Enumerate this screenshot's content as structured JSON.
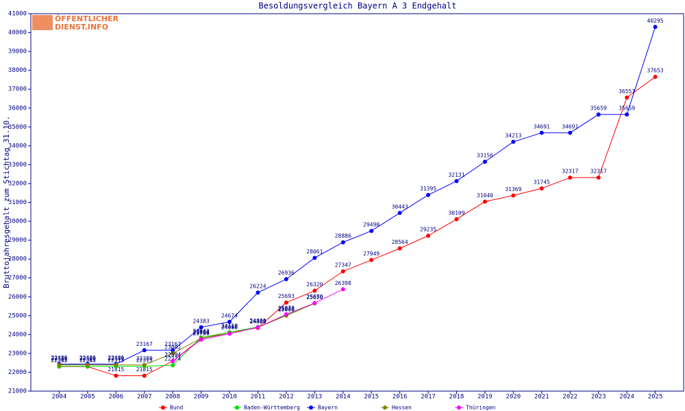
{
  "chart_data": {
    "type": "line",
    "title": "Besoldungsvergleich Bayern A 3 Endgehalt",
    "y_label": "Bruttojahresgehalt zum Stichtag 31.10.",
    "watermark": [
      "ÖFFENTLICHER",
      "DIENST.INFO"
    ],
    "categories": [
      "2004",
      "2005",
      "2006",
      "2007",
      "2008",
      "2009",
      "2010",
      "2011",
      "2012",
      "2013",
      "2014",
      "2015",
      "2016",
      "2017",
      "2018",
      "2019",
      "2020",
      "2021",
      "2022",
      "2023",
      "2024",
      "2025"
    ],
    "ylim": [
      21000,
      41000
    ],
    "yticks": [
      21000,
      22000,
      23000,
      24000,
      25000,
      26000,
      27000,
      28000,
      29000,
      30000,
      31000,
      32000,
      33000,
      34000,
      35000,
      36000,
      37000,
      38000,
      39000,
      40000,
      41000
    ],
    "series": [
      {
        "name": "Bund",
        "color": "#ff0000",
        "values": [
          22302,
          22302,
          21815,
          21815,
          22594,
          23784,
          24119,
          24350,
          25693,
          26320,
          27347,
          27949,
          28564,
          29235,
          30109,
          31040,
          31369,
          31745,
          32317,
          32317,
          36557,
          37653
        ]
      },
      {
        "name": "Baden-Württemberg",
        "color": "#00dd00",
        "values": [
          22315,
          22315,
          22315,
          22315,
          22374,
          23842,
          24118,
          24401,
          25030,
          25670,
          null,
          null,
          null,
          null,
          null,
          null,
          null,
          null,
          null,
          null,
          null,
          null
        ]
      },
      {
        "name": "Bayern",
        "color": "#0000ff",
        "values": [
          22436,
          22436,
          22436,
          23167,
          23167,
          24383,
          24674,
          26224,
          26936,
          28061,
          28886,
          29490,
          30443,
          31395,
          32131,
          33156,
          34213,
          34691,
          34691,
          35659,
          35659,
          40295
        ]
      },
      {
        "name": "Hessen",
        "color": "#808000",
        "values": [
          22389,
          22389,
          22389,
          22389,
          23002,
          23800,
          24050,
          24380,
          25000,
          25650,
          null,
          null,
          null,
          null,
          null,
          null,
          null,
          null,
          null,
          null,
          null,
          null
        ]
      },
      {
        "name": "Thüringen",
        "color": "#ff00ff",
        "values": [
          null,
          null,
          null,
          null,
          22594,
          23730,
          24040,
          24380,
          25073,
          25670,
          26398,
          null,
          null,
          null,
          null,
          null,
          null,
          null,
          null,
          null,
          null,
          null
        ]
      }
    ]
  }
}
